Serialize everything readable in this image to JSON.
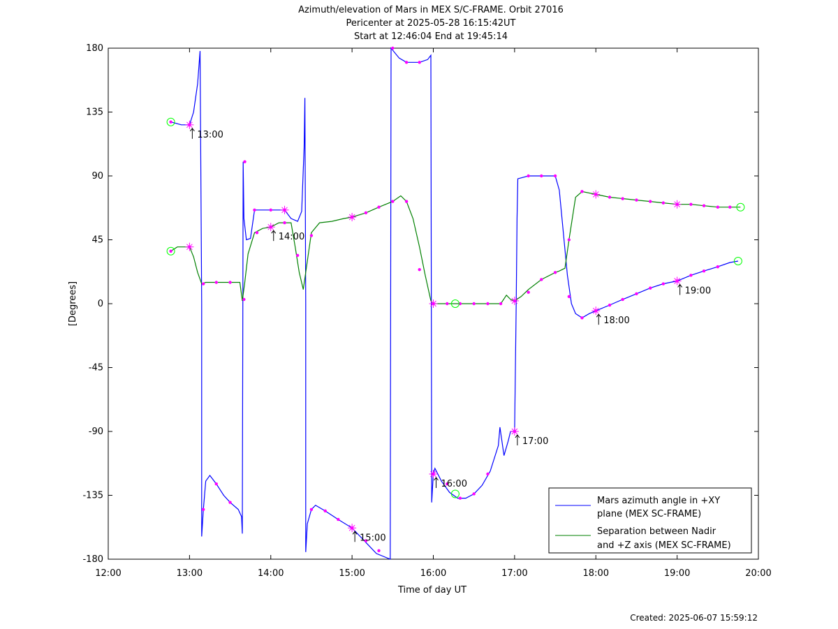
{
  "chart_data": {
    "type": "line",
    "title": [
      "Azimuth/elevation of Mars in MEX S/C-FRAME.  Orbit 27016",
      "Pericenter at 2025-05-28 16:15:42UT",
      "Start at 12:46:04 End at 19:45:14"
    ],
    "xlabel": "Time of day UT",
    "ylabel": "[Degrees]",
    "xlim": [
      12,
      20
    ],
    "ylim": [
      -180,
      180
    ],
    "x_ticks": [
      12,
      13,
      14,
      15,
      16,
      17,
      18,
      19,
      20
    ],
    "x_tick_labels": [
      "12:00",
      "13:00",
      "14:00",
      "15:00",
      "16:00",
      "17:00",
      "18:00",
      "19:00",
      "20:00"
    ],
    "y_ticks": [
      180,
      135,
      90,
      45,
      0,
      -45,
      -90,
      -135,
      -180
    ],
    "y_tick_labels": [
      "180",
      "135",
      "90",
      "45",
      "0",
      "-45",
      "-90",
      "-135",
      "-180"
    ],
    "grid": false,
    "legend_position": "bottom-right",
    "series": [
      {
        "name": "Mars azimuth angle in +XY plane (MEX SC-FRAME)",
        "legend_lines": [
          "Mars azimuth angle in +XY",
          "plane (MEX SC-FRAME)"
        ],
        "color": "#0000ff",
        "points": [
          [
            12.77,
            128
          ],
          [
            12.9,
            126
          ],
          [
            13.0,
            126
          ],
          [
            13.05,
            135
          ],
          [
            13.1,
            155
          ],
          [
            13.13,
            178
          ],
          [
            13.15,
            0
          ],
          [
            13.15,
            -164
          ],
          [
            13.17,
            -145
          ],
          [
            13.2,
            -125
          ],
          [
            13.25,
            -121
          ],
          [
            13.33,
            -127
          ],
          [
            13.42,
            -135
          ],
          [
            13.5,
            -140
          ],
          [
            13.6,
            -145
          ],
          [
            13.64,
            -150
          ],
          [
            13.65,
            -162
          ],
          [
            13.66,
            100
          ],
          [
            13.67,
            60
          ],
          [
            13.7,
            45
          ],
          [
            13.75,
            46
          ],
          [
            13.8,
            66
          ],
          [
            13.9,
            66
          ],
          [
            14.0,
            66
          ],
          [
            14.17,
            66
          ],
          [
            14.25,
            60
          ],
          [
            14.33,
            58
          ],
          [
            14.38,
            65
          ],
          [
            14.41,
            110
          ],
          [
            14.42,
            145
          ],
          [
            14.43,
            0
          ],
          [
            14.43,
            -175
          ],
          [
            14.45,
            -155
          ],
          [
            14.5,
            -145
          ],
          [
            14.55,
            -142
          ],
          [
            14.67,
            -146
          ],
          [
            14.83,
            -152
          ],
          [
            15.0,
            -158
          ],
          [
            15.1,
            -164
          ],
          [
            15.2,
            -170
          ],
          [
            15.3,
            -176
          ],
          [
            15.47,
            -180
          ],
          [
            15.48,
            180
          ],
          [
            15.58,
            173
          ],
          [
            15.67,
            170
          ],
          [
            15.83,
            170
          ],
          [
            15.93,
            172
          ],
          [
            15.97,
            175
          ],
          [
            15.98,
            -140
          ],
          [
            16.0,
            -120
          ],
          [
            16.02,
            -116
          ],
          [
            16.1,
            -125
          ],
          [
            16.2,
            -133
          ],
          [
            16.3,
            -137
          ],
          [
            16.4,
            -137
          ],
          [
            16.5,
            -134
          ],
          [
            16.6,
            -128
          ],
          [
            16.7,
            -118
          ],
          [
            16.8,
            -100
          ],
          [
            16.82,
            -87
          ],
          [
            16.87,
            -107
          ],
          [
            16.92,
            -97
          ],
          [
            16.95,
            -90
          ],
          [
            17.0,
            -90
          ],
          [
            17.02,
            0
          ],
          [
            17.03,
            60
          ],
          [
            17.04,
            88
          ],
          [
            17.17,
            90
          ],
          [
            17.33,
            90
          ],
          [
            17.5,
            90
          ],
          [
            17.55,
            80
          ],
          [
            17.6,
            50
          ],
          [
            17.65,
            20
          ],
          [
            17.7,
            0
          ],
          [
            17.75,
            -7
          ],
          [
            17.83,
            -10
          ],
          [
            17.92,
            -7
          ],
          [
            18.0,
            -5
          ],
          [
            18.17,
            -1
          ],
          [
            18.33,
            3
          ],
          [
            18.5,
            7
          ],
          [
            18.67,
            11
          ],
          [
            18.83,
            14
          ],
          [
            19.0,
            16
          ],
          [
            19.17,
            20
          ],
          [
            19.33,
            23
          ],
          [
            19.5,
            26
          ],
          [
            19.65,
            29
          ],
          [
            19.75,
            30
          ]
        ]
      },
      {
        "name": "Separation between Nadir and +Z axis (MEX SC-FRAME)",
        "legend_lines": [
          "Separation between Nadir",
          "and +Z axis (MEX SC-FRAME)"
        ],
        "color": "#008000",
        "points": [
          [
            12.77,
            37
          ],
          [
            12.85,
            40
          ],
          [
            13.0,
            40
          ],
          [
            13.05,
            33
          ],
          [
            13.1,
            22
          ],
          [
            13.15,
            14
          ],
          [
            13.2,
            15
          ],
          [
            13.33,
            15
          ],
          [
            13.5,
            15
          ],
          [
            13.62,
            15
          ],
          [
            13.65,
            2
          ],
          [
            13.68,
            15
          ],
          [
            13.72,
            35
          ],
          [
            13.8,
            50
          ],
          [
            13.9,
            53
          ],
          [
            14.0,
            54
          ],
          [
            14.1,
            57
          ],
          [
            14.25,
            57
          ],
          [
            14.3,
            40
          ],
          [
            14.35,
            22
          ],
          [
            14.4,
            10
          ],
          [
            14.45,
            30
          ],
          [
            14.5,
            50
          ],
          [
            14.6,
            57
          ],
          [
            14.75,
            58
          ],
          [
            14.9,
            60
          ],
          [
            15.0,
            61
          ],
          [
            15.17,
            64
          ],
          [
            15.33,
            68
          ],
          [
            15.5,
            72
          ],
          [
            15.6,
            76
          ],
          [
            15.67,
            72
          ],
          [
            15.75,
            60
          ],
          [
            15.83,
            40
          ],
          [
            15.9,
            20
          ],
          [
            15.97,
            2
          ],
          [
            16.0,
            0
          ],
          [
            16.17,
            0
          ],
          [
            16.27,
            0
          ],
          [
            16.33,
            0
          ],
          [
            16.5,
            0
          ],
          [
            16.67,
            0
          ],
          [
            16.83,
            0
          ],
          [
            16.9,
            6
          ],
          [
            16.95,
            3
          ],
          [
            17.0,
            2
          ],
          [
            17.08,
            5
          ],
          [
            17.17,
            10
          ],
          [
            17.33,
            17
          ],
          [
            17.5,
            22
          ],
          [
            17.55,
            23
          ],
          [
            17.62,
            25
          ],
          [
            17.67,
            45
          ],
          [
            17.75,
            75
          ],
          [
            17.83,
            79
          ],
          [
            18.0,
            77
          ],
          [
            18.17,
            75
          ],
          [
            18.33,
            74
          ],
          [
            18.5,
            73
          ],
          [
            18.67,
            72
          ],
          [
            18.83,
            71
          ],
          [
            19.0,
            70
          ],
          [
            19.17,
            70
          ],
          [
            19.33,
            69
          ],
          [
            19.5,
            68
          ],
          [
            19.65,
            68
          ],
          [
            19.78,
            68
          ]
        ]
      }
    ],
    "marker_points": [
      [
        12.77,
        128
      ],
      [
        13.0,
        126
      ],
      [
        13.17,
        -145
      ],
      [
        13.33,
        -127
      ],
      [
        13.5,
        -140
      ],
      [
        13.68,
        100
      ],
      [
        13.8,
        66
      ],
      [
        14.0,
        66
      ],
      [
        14.17,
        66
      ],
      [
        14.33,
        34
      ],
      [
        14.5,
        -145
      ],
      [
        14.67,
        -146
      ],
      [
        14.83,
        -152
      ],
      [
        15.0,
        -158
      ],
      [
        15.17,
        -167
      ],
      [
        15.33,
        -174
      ],
      [
        15.5,
        180
      ],
      [
        15.67,
        170
      ],
      [
        15.83,
        170
      ],
      [
        16.0,
        -120
      ],
      [
        16.17,
        -127
      ],
      [
        16.33,
        -137
      ],
      [
        16.5,
        -134
      ],
      [
        16.67,
        -120
      ],
      [
        17.0,
        -90
      ],
      [
        17.17,
        90
      ],
      [
        17.33,
        90
      ],
      [
        17.5,
        90
      ],
      [
        17.67,
        5
      ],
      [
        17.83,
        -10
      ],
      [
        18.0,
        -5
      ],
      [
        18.17,
        -1
      ],
      [
        18.33,
        3
      ],
      [
        18.5,
        7
      ],
      [
        18.67,
        11
      ],
      [
        18.83,
        14
      ],
      [
        19.0,
        16
      ],
      [
        19.17,
        20
      ],
      [
        19.33,
        23
      ],
      [
        19.5,
        26
      ],
      [
        12.77,
        37
      ],
      [
        13.0,
        40
      ],
      [
        13.17,
        14
      ],
      [
        13.33,
        15
      ],
      [
        13.5,
        15
      ],
      [
        13.67,
        3
      ],
      [
        13.83,
        50
      ],
      [
        14.0,
        54
      ],
      [
        14.17,
        57
      ],
      [
        14.5,
        48
      ],
      [
        15.0,
        61
      ],
      [
        15.17,
        64
      ],
      [
        15.33,
        68
      ],
      [
        15.5,
        72
      ],
      [
        15.67,
        72
      ],
      [
        15.83,
        24
      ],
      [
        16.0,
        0
      ],
      [
        16.17,
        0
      ],
      [
        16.33,
        0
      ],
      [
        16.5,
        0
      ],
      [
        16.67,
        0
      ],
      [
        16.83,
        0
      ],
      [
        17.0,
        2
      ],
      [
        17.17,
        8
      ],
      [
        17.33,
        17
      ],
      [
        17.5,
        22
      ],
      [
        17.67,
        45
      ],
      [
        17.83,
        79
      ],
      [
        18.0,
        77
      ],
      [
        18.17,
        75
      ],
      [
        18.33,
        74
      ],
      [
        18.5,
        73
      ],
      [
        18.67,
        72
      ],
      [
        18.83,
        71
      ],
      [
        19.0,
        70
      ],
      [
        19.17,
        70
      ],
      [
        19.33,
        69
      ],
      [
        19.5,
        68
      ],
      [
        19.65,
        68
      ]
    ],
    "star_markers": [
      [
        13.0,
        126
      ],
      [
        13.0,
        40
      ],
      [
        14.0,
        54
      ],
      [
        14.17,
        66
      ],
      [
        15.0,
        -158
      ],
      [
        15.0,
        61
      ],
      [
        16.0,
        -120
      ],
      [
        16.0,
        0
      ],
      [
        17.0,
        -90
      ],
      [
        17.0,
        2
      ],
      [
        18.0,
        -5
      ],
      [
        18.0,
        77
      ],
      [
        19.0,
        16
      ],
      [
        19.0,
        70
      ]
    ],
    "circle_markers": [
      [
        12.77,
        128
      ],
      [
        12.77,
        37
      ],
      [
        16.27,
        0
      ],
      [
        16.27,
        -134
      ],
      [
        19.75,
        30
      ],
      [
        19.78,
        68
      ]
    ],
    "annotations": [
      {
        "text": "13:00",
        "x": 13.0,
        "y": 126
      },
      {
        "text": "14:00",
        "x": 14.0,
        "y": 54
      },
      {
        "text": "15:00",
        "x": 15.0,
        "y": -158
      },
      {
        "text": "16:00",
        "x": 16.0,
        "y": -120
      },
      {
        "text": "17:00",
        "x": 17.0,
        "y": -90
      },
      {
        "text": "18:00",
        "x": 18.0,
        "y": -5
      },
      {
        "text": "19:00",
        "x": 19.0,
        "y": 16
      }
    ]
  },
  "footer": {
    "created": "Created: 2025-06-07 15:59:12"
  }
}
